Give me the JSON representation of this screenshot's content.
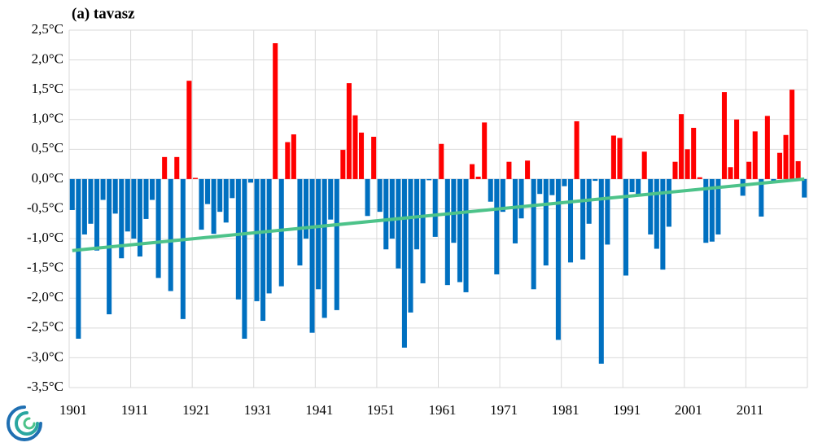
{
  "chart_data": {
    "type": "bar",
    "title": "(a) tavasz",
    "categories": [
      "1901",
      null,
      null,
      null,
      null,
      null,
      null,
      null,
      null,
      null,
      "1911",
      null,
      null,
      null,
      null,
      null,
      null,
      null,
      null,
      null,
      "1921",
      null,
      null,
      null,
      null,
      null,
      null,
      null,
      null,
      null,
      "1931",
      null,
      null,
      null,
      null,
      null,
      null,
      null,
      null,
      null,
      "1941",
      null,
      null,
      null,
      null,
      null,
      null,
      null,
      null,
      null,
      "1951",
      null,
      null,
      null,
      null,
      null,
      null,
      null,
      null,
      null,
      "1961",
      null,
      null,
      null,
      null,
      null,
      null,
      null,
      null,
      null,
      "1971",
      null,
      null,
      null,
      null,
      null,
      null,
      null,
      null,
      null,
      "1981",
      null,
      null,
      null,
      null,
      null,
      null,
      null,
      null,
      null,
      "1991",
      null,
      null,
      null,
      null,
      null,
      null,
      null,
      null,
      null,
      "2001",
      null,
      null,
      null,
      null,
      null,
      null,
      null,
      null,
      null,
      "2011",
      null,
      null,
      null,
      null,
      null,
      null,
      null,
      null,
      null
    ],
    "values": [
      -0.52,
      -2.68,
      -0.93,
      -0.75,
      -1.2,
      -0.35,
      -2.27,
      -0.58,
      -1.33,
      -0.88,
      -1.0,
      -1.3,
      -0.67,
      -0.35,
      -1.66,
      0.37,
      -1.88,
      0.37,
      -2.35,
      1.65,
      0.02,
      -0.85,
      -0.42,
      -0.92,
      -0.55,
      -0.73,
      -0.32,
      -2.02,
      -2.68,
      -0.06,
      -2.05,
      -2.38,
      -1.92,
      2.28,
      -1.8,
      0.62,
      0.75,
      -1.45,
      -1.0,
      -2.58,
      -1.85,
      -2.33,
      -0.68,
      -2.2,
      0.49,
      1.61,
      1.07,
      0.78,
      -0.62,
      0.71,
      -0.55,
      -1.18,
      -1.0,
      -1.5,
      -2.83,
      -2.24,
      -1.18,
      -1.75,
      -0.02,
      -0.97,
      0.59,
      -1.78,
      -1.07,
      -1.73,
      -1.9,
      0.25,
      0.04,
      0.95,
      -0.38,
      -1.6,
      -0.55,
      0.29,
      -1.08,
      -0.66,
      0.31,
      -1.85,
      -0.25,
      -1.45,
      -0.27,
      -2.7,
      -0.12,
      -1.4,
      0.97,
      -1.35,
      -0.75,
      -0.03,
      -3.1,
      -1.1,
      0.73,
      0.69,
      -1.62,
      -0.22,
      -0.28,
      0.46,
      -0.93,
      -1.17,
      -1.52,
      -0.8,
      0.29,
      1.09,
      0.5,
      0.86,
      0.03,
      -1.07,
      -1.05,
      -0.93,
      1.46,
      0.2,
      1.0,
      -0.28,
      0.29,
      0.8,
      -0.63,
      1.06,
      -0.06,
      0.44,
      0.74,
      1.5,
      0.3,
      -0.31
    ],
    "colors": {
      "positive": "#ff0000",
      "negative": "#0070c0"
    },
    "trend": {
      "color": "#4dc38a",
      "values": [
        -1.2,
        0.0
      ]
    },
    "ylim": [
      -3.5,
      2.5
    ],
    "yticks": [
      {
        "value": -3.5,
        "label": "-3,5°C"
      },
      {
        "value": -3.0,
        "label": "-3,0°C"
      },
      {
        "value": -2.5,
        "label": "-2,5°C"
      },
      {
        "value": -2.0,
        "label": "-2,0°C"
      },
      {
        "value": -1.5,
        "label": "-1,5°C"
      },
      {
        "value": -1.0,
        "label": "-1,0°C"
      },
      {
        "value": -0.5,
        "label": "-0,5°C"
      },
      {
        "value": 0.0,
        "label": "0,0°C"
      },
      {
        "value": 0.5,
        "label": "0,5°C"
      },
      {
        "value": 1.0,
        "label": "1,0°C"
      },
      {
        "value": 1.5,
        "label": "1,5°C"
      },
      {
        "value": 2.0,
        "label": "2,0°C"
      },
      {
        "value": 2.5,
        "label": "2,5°C"
      }
    ],
    "grid": true
  }
}
